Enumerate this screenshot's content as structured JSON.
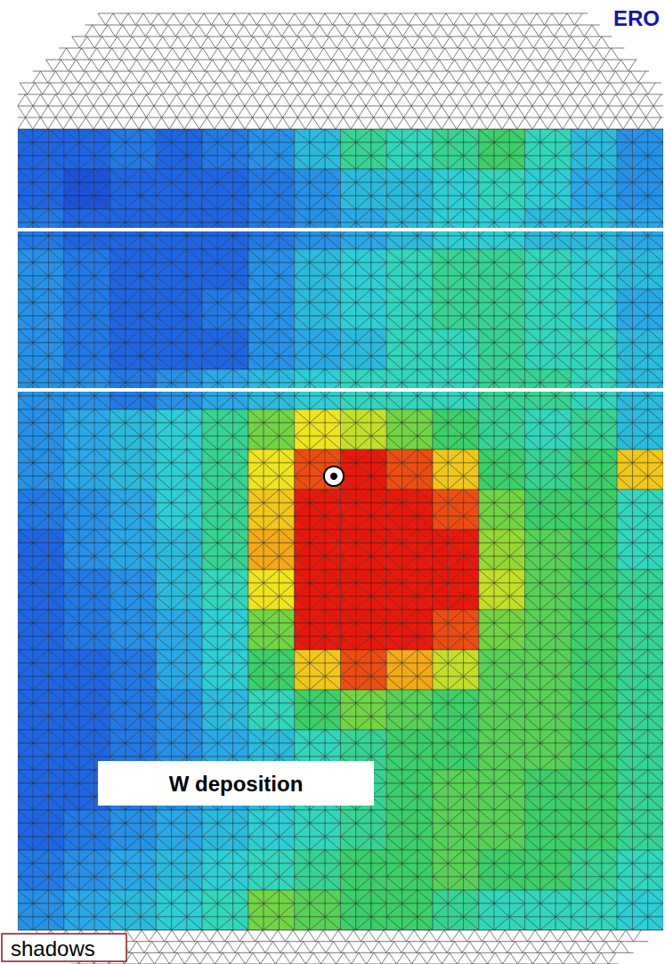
{
  "chart_data": {
    "type": "heatmap",
    "annotations": [
      "ERO",
      "W deposition",
      "shadows"
    ],
    "tick_labels": false,
    "color_range": [
      0,
      1
    ],
    "cells": [
      [
        0.1,
        0.1,
        0.15,
        0.1,
        0.15,
        0.2,
        0.3,
        0.45,
        0.4,
        0.45,
        0.5,
        0.4,
        0.3,
        0.2
      ],
      [
        0.1,
        0.05,
        0.1,
        0.1,
        0.1,
        0.15,
        0.2,
        0.3,
        0.3,
        0.35,
        0.4,
        0.35,
        0.25,
        0.2
      ],
      [
        0.15,
        0.1,
        0.1,
        0.1,
        0.1,
        0.15,
        0.2,
        0.25,
        0.3,
        0.35,
        0.35,
        0.3,
        0.3,
        0.25
      ],
      [
        0.2,
        0.15,
        0.1,
        0.1,
        0.1,
        0.2,
        0.3,
        0.35,
        0.4,
        0.45,
        0.45,
        0.4,
        0.35,
        0.3
      ],
      [
        0.2,
        0.15,
        0.1,
        0.1,
        0.15,
        0.2,
        0.3,
        0.35,
        0.4,
        0.45,
        0.45,
        0.4,
        0.35,
        0.25
      ],
      [
        0.2,
        0.15,
        0.1,
        0.1,
        0.1,
        0.2,
        0.25,
        0.3,
        0.4,
        0.4,
        0.45,
        0.4,
        0.4,
        0.3
      ],
      [
        0.2,
        0.2,
        0.15,
        0.2,
        0.25,
        0.3,
        0.35,
        0.4,
        0.4,
        0.4,
        0.45,
        0.45,
        0.4,
        0.3
      ],
      [
        0.2,
        0.25,
        0.3,
        0.35,
        0.45,
        0.6,
        0.75,
        0.7,
        0.6,
        0.5,
        0.45,
        0.4,
        0.45,
        0.3
      ],
      [
        0.2,
        0.25,
        0.3,
        0.35,
        0.45,
        0.75,
        0.95,
        1,
        0.95,
        0.8,
        0.5,
        0.45,
        0.5,
        0.8
      ],
      [
        0.15,
        0.2,
        0.25,
        0.35,
        0.45,
        0.8,
        1,
        1,
        1,
        0.95,
        0.6,
        0.5,
        0.5,
        0.4
      ],
      [
        0.1,
        0.2,
        0.25,
        0.3,
        0.45,
        0.85,
        1,
        1,
        1,
        1,
        0.65,
        0.55,
        0.5,
        0.4
      ],
      [
        0.1,
        0.15,
        0.2,
        0.3,
        0.4,
        0.75,
        1,
        1,
        1,
        1,
        0.7,
        0.55,
        0.5,
        0.45
      ],
      [
        0.1,
        0.15,
        0.2,
        0.25,
        0.35,
        0.6,
        1,
        1,
        1,
        0.95,
        0.6,
        0.55,
        0.5,
        0.45
      ],
      [
        0.1,
        0.1,
        0.15,
        0.25,
        0.35,
        0.5,
        0.8,
        0.95,
        0.85,
        0.7,
        0.55,
        0.55,
        0.5,
        0.45
      ],
      [
        0.1,
        0.1,
        0.15,
        0.2,
        0.3,
        0.4,
        0.5,
        0.6,
        0.55,
        0.5,
        0.55,
        0.55,
        0.5,
        0.45
      ],
      [
        0.1,
        0.1,
        0.15,
        0.2,
        0.25,
        0.3,
        0.4,
        0.45,
        0.5,
        0.5,
        0.55,
        0.55,
        0.5,
        0.45
      ],
      [
        0.1,
        0.1,
        0.15,
        0.2,
        0.25,
        0.3,
        0.4,
        0.45,
        0.5,
        0.55,
        0.55,
        0.5,
        0.5,
        0.45
      ],
      [
        0.1,
        0.15,
        0.2,
        0.25,
        0.3,
        0.35,
        0.4,
        0.45,
        0.5,
        0.55,
        0.55,
        0.5,
        0.5,
        0.45
      ],
      [
        0.15,
        0.2,
        0.25,
        0.3,
        0.35,
        0.4,
        0.45,
        0.5,
        0.5,
        0.55,
        0.5,
        0.5,
        0.45,
        0.4
      ],
      [
        0.2,
        0.25,
        0.3,
        0.35,
        0.4,
        0.6,
        0.55,
        0.5,
        0.5,
        0.45,
        0.4,
        0.4,
        0.4,
        0.35
      ]
    ]
  }
}
